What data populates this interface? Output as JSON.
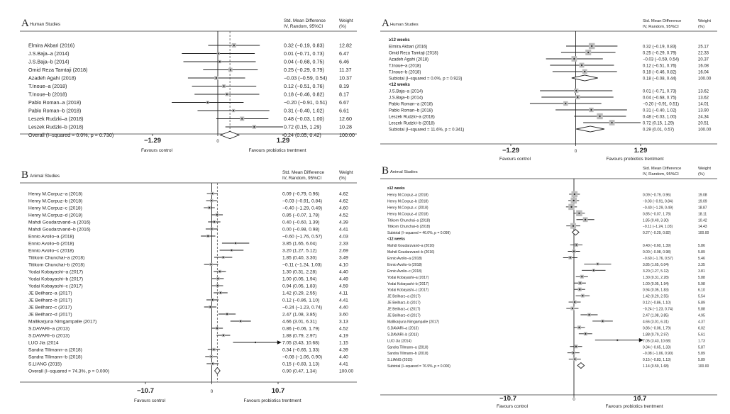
{
  "chart_data": [
    {
      "type": "forest",
      "panel": "A",
      "title": "Human Studies",
      "col_header_es": [
        "Std. Mean Difference",
        "IV, Random,  95%CI"
      ],
      "col_header_w": [
        "Weight",
        "(%)"
      ],
      "xlim": [
        -1.29,
        1.29
      ],
      "ticks": [
        "-1.29",
        "0",
        "1.29"
      ],
      "left_label": "Favours control",
      "right_label": "Favours probiotics trentment",
      "overall_es": 0.24,
      "rows": [
        {
          "kind": "study",
          "name": "Elmira Akbari (2016)",
          "es": 0.32,
          "lo": -0.19,
          "hi": 0.83,
          "text": "0.32 (−0.19, 0.83)",
          "w": "12.82"
        },
        {
          "kind": "study",
          "name": "J.S.Baja–a (2014)",
          "es": 0.01,
          "lo": -0.71,
          "hi": 0.73,
          "text": "0.01 (−0.71, 0.73)",
          "w": "6.47"
        },
        {
          "kind": "study",
          "name": "J.S.Baja–b (2014)",
          "es": 0.04,
          "lo": -0.68,
          "hi": 0.75,
          "text": "0.04 (−0.68, 0.75)",
          "w": "6.46"
        },
        {
          "kind": "study",
          "name": "Omid Reza Tamtaji (2018)",
          "es": 0.25,
          "lo": -0.29,
          "hi": 0.79,
          "text": "0.25 (−0.29, 0.79)",
          "w": "11.37"
        },
        {
          "kind": "study",
          "name": "Azadeh Agahi (2018)",
          "es": -0.03,
          "lo": -0.59,
          "hi": 0.54,
          "text": "−0.03 (−0.59, 0.54)",
          "w": "10.37"
        },
        {
          "kind": "study",
          "name": "T.Inoue–a (2018)",
          "es": 0.12,
          "lo": -0.51,
          "hi": 0.76,
          "text": "0.12 (−0.51, 0.76)",
          "w": "8.19"
        },
        {
          "kind": "study",
          "name": "T.Inoue–b (2018)",
          "es": 0.18,
          "lo": -0.46,
          "hi": 0.82,
          "text": "0.18 (−0.46, 0.82)",
          "w": "8.17"
        },
        {
          "kind": "study",
          "name": "Pablo Roman–a (2018)",
          "es": -0.2,
          "lo": -0.91,
          "hi": 0.51,
          "text": "−0.20 (−0.91, 0.51)",
          "w": "6.67"
        },
        {
          "kind": "study",
          "name": "Pablo Roman–b (2018)",
          "es": 0.31,
          "lo": -0.4,
          "hi": 1.02,
          "text": "0.31 (−0.40, 1.02)",
          "w": "6.61"
        },
        {
          "kind": "study",
          "name": "Leszek Rudzki–a (2018)",
          "es": 0.48,
          "lo": -0.03,
          "hi": 1.0,
          "text": "0.48 (−0.03, 1.00)",
          "w": "12.60"
        },
        {
          "kind": "study",
          "name": "Leszek Rudzki–b (2018)",
          "es": 0.72,
          "lo": 0.15,
          "hi": 1.29,
          "text": "0.72 (0.15, 1.29)",
          "w": "10.28"
        },
        {
          "kind": "sum",
          "name": "Overall  (I–squared = 0.0%, p = 0.730)",
          "es": 0.24,
          "lo": 0.05,
          "hi": 0.42,
          "text": "0.24 (0.05, 0.42)",
          "w": "100.00"
        }
      ]
    },
    {
      "type": "forest",
      "panel": "A",
      "title": "Human Studies",
      "col_header_es": [
        "Std. Mean Difference",
        "IV, Random,  95%CI"
      ],
      "col_header_w": [
        "Weight",
        "(%)"
      ],
      "xlim": [
        -1.29,
        1.29
      ],
      "ticks": [
        "-1.29",
        "0",
        "1.29"
      ],
      "left_label": "Favours control",
      "right_label": "Favours probiotics trentment",
      "rows": [
        {
          "kind": "group",
          "name": "≥12 weeks"
        },
        {
          "kind": "study",
          "name": "Elmira Akbari (2016)",
          "es": 0.32,
          "lo": -0.19,
          "hi": 0.83,
          "text": "0.32 (−0.19, 0.83)",
          "w": "25.17"
        },
        {
          "kind": "study",
          "name": "Omid Reza Tamtaji (2018)",
          "es": 0.25,
          "lo": -0.29,
          "hi": 0.79,
          "text": "0.25 (−0.29, 0.79)",
          "w": "22.33"
        },
        {
          "kind": "study",
          "name": "Azadeh Agahi (2018)",
          "es": -0.03,
          "lo": -0.59,
          "hi": 0.54,
          "text": "−0.03 (−0.59, 0.54)",
          "w": "20.37"
        },
        {
          "kind": "study",
          "name": "T.Inoue–a (2018)",
          "es": 0.12,
          "lo": -0.51,
          "hi": 0.76,
          "text": "0.12 (−0.51, 0.76)",
          "w": "16.08"
        },
        {
          "kind": "study",
          "name": "T.Inoue–b (2018)",
          "es": 0.18,
          "lo": -0.46,
          "hi": 0.82,
          "text": "0.18 (−0.46, 0.82)",
          "w": "16.04"
        },
        {
          "kind": "sum",
          "name": "Subtotal  (I–squared = 0.0%, p = 0.923)",
          "es": 0.18,
          "lo": -0.08,
          "hi": 0.44,
          "text": "0.18 (−0.08, 0.44)",
          "w": "100.00"
        },
        {
          "kind": "group",
          "name": "<12 weeks"
        },
        {
          "kind": "study",
          "name": "J.S.Baja–a (2014)",
          "es": 0.01,
          "lo": -0.71,
          "hi": 0.73,
          "text": "0.01 (−0.71, 0.73)",
          "w": "13.62"
        },
        {
          "kind": "study",
          "name": "J.S.Baja–b (2014)",
          "es": 0.04,
          "lo": -0.68,
          "hi": 0.75,
          "text": "0.04 (−0.68, 0.75)",
          "w": "13.62"
        },
        {
          "kind": "study",
          "name": "Pablo Roman–a (2018)",
          "es": -0.2,
          "lo": -0.91,
          "hi": 0.51,
          "text": "−0.20 (−0.91, 0.51)",
          "w": "14.01"
        },
        {
          "kind": "study",
          "name": "Pablo Roman–b (2018)",
          "es": 0.31,
          "lo": -0.4,
          "hi": 1.02,
          "text": "0.31 (−0.40, 1.02)",
          "w": "13.90"
        },
        {
          "kind": "study",
          "name": "Leszek Rudzki–a (2018)",
          "es": 0.48,
          "lo": -0.03,
          "hi": 1.0,
          "text": "0.48 (−0.03, 1.00)",
          "w": "24.34"
        },
        {
          "kind": "study",
          "name": "Leszek Rudzki–b (2018)",
          "es": 0.72,
          "lo": 0.15,
          "hi": 1.29,
          "text": "0.72 (0.15, 1.29)",
          "w": "20.51"
        },
        {
          "kind": "sum",
          "name": "Subtotal  (I–squared = 11.6%, p = 0.341)",
          "es": 0.29,
          "lo": 0.01,
          "hi": 0.57,
          "text": "0.29 (0.01, 0.57)",
          "w": "100.00"
        }
      ]
    },
    {
      "type": "forest",
      "panel": "B",
      "title": "Animal Studies",
      "col_header_es": [
        "Std. Mean Difference",
        "IV, Random,  95%CI"
      ],
      "col_header_w": [
        "Weight",
        "(%)"
      ],
      "xlim": [
        -10.7,
        10.7
      ],
      "ticks": [
        "-10.7",
        "0",
        "10.7"
      ],
      "left_label": "Favours control",
      "right_label": "Favours probiotics trentment",
      "overall_es": 0.9,
      "rows": [
        {
          "kind": "study",
          "name": "Henry M.Corpuz–a (2018)",
          "es": 0.09,
          "lo": -0.79,
          "hi": 0.96,
          "text": "0.09 (−0.79, 0.96)",
          "w": "4.62"
        },
        {
          "kind": "study",
          "name": "Henry M.Corpuz–b (2018)",
          "es": -0.03,
          "lo": -0.91,
          "hi": 0.84,
          "text": "−0.03 (−0.91, 0.84)",
          "w": "4.62"
        },
        {
          "kind": "study",
          "name": "Henry M.Corpuz–c (2018)",
          "es": -0.4,
          "lo": -1.29,
          "hi": 0.49,
          "text": "−0.40 (−1.29, 0.49)",
          "w": "4.60"
        },
        {
          "kind": "study",
          "name": "Henry M.Corpuz–d (2018)",
          "es": 0.85,
          "lo": -0.07,
          "hi": 1.78,
          "text": "0.85 (−0.07, 1.78)",
          "w": "4.52"
        },
        {
          "kind": "study",
          "name": "Mahdi Goudarzvand–a (2016)",
          "es": 0.4,
          "lo": -0.6,
          "hi": 1.39,
          "text": "0.40 (−0.60, 1.39)",
          "w": "4.39"
        },
        {
          "kind": "study",
          "name": "Mahdi Goudarzvand–b (2016)",
          "es": 0.0,
          "lo": -0.98,
          "hi": 0.98,
          "text": "0.00 (−0.98, 0.98)",
          "w": "4.41"
        },
        {
          "kind": "study",
          "name": "Ennio Avolio–a (2018)",
          "es": -0.6,
          "lo": -1.76,
          "hi": 0.57,
          "text": "−0.60 (−1.76, 0.57)",
          "w": "4.03"
        },
        {
          "kind": "study",
          "name": "Ennio Avolio–b (2018)",
          "es": 3.85,
          "lo": 1.65,
          "hi": 6.04,
          "text": "3.85 (1.65, 6.04)",
          "w": "2.33"
        },
        {
          "kind": "study",
          "name": "Ennio Avolio–c (2018)",
          "es": 3.2,
          "lo": 1.27,
          "hi": 5.12,
          "text": "3.20 (1.27, 5.12)",
          "w": "2.69"
        },
        {
          "kind": "study",
          "name": "Titikorn Chunchai–a (2018)",
          "es": 1.85,
          "lo": 0.4,
          "hi": 3.3,
          "text": "1.85 (0.40, 3.30)",
          "w": "3.49"
        },
        {
          "kind": "study",
          "name": "Titikorn Chunchai–b (2018)",
          "es": -0.11,
          "lo": -1.24,
          "hi": 1.03,
          "text": "−0.11 (−1.24, 1.03)",
          "w": "4.10"
        },
        {
          "kind": "study",
          "name": "Yodai Kobayashi–a (2017)",
          "es": 1.3,
          "lo": 0.31,
          "hi": 2.28,
          "text": "1.30 (0.31, 2.28)",
          "w": "4.40"
        },
        {
          "kind": "study",
          "name": "Yodai Kobayashi–b (2017)",
          "es": 1.0,
          "lo": 0.05,
          "hi": 1.94,
          "text": "1.00 (0.05, 1.94)",
          "w": "4.49"
        },
        {
          "kind": "study",
          "name": "Yodai Kobayashi–c (2017)",
          "es": 0.94,
          "lo": 0.05,
          "hi": 1.83,
          "text": "0.94 (0.05, 1.83)",
          "w": "4.59"
        },
        {
          "kind": "study",
          "name": "JE Beilharz–a (2017)",
          "es": 1.42,
          "lo": 0.29,
          "hi": 2.55,
          "text": "1.42 (0.29, 2.55)",
          "w": "4.11"
        },
        {
          "kind": "study",
          "name": "JE Beilharz–b (2017)",
          "es": 0.12,
          "lo": -0.86,
          "hi": 1.1,
          "text": "0.12 (−0.86, 1.10)",
          "w": "4.41"
        },
        {
          "kind": "study",
          "name": "JE Beilharz–c (2017)",
          "es": -0.24,
          "lo": -1.23,
          "hi": 0.74,
          "text": "−0.24 (−1.23, 0.74)",
          "w": "4.40"
        },
        {
          "kind": "study",
          "name": "JE Beilharz–d (2017)",
          "es": 2.47,
          "lo": 1.08,
          "hi": 3.85,
          "text": "2.47 (1.08, 3.85)",
          "w": "3.60"
        },
        {
          "kind": "study",
          "name": "Mallikarjuna Nimgampalle (2017)",
          "es": 4.66,
          "lo": 3.01,
          "hi": 6.31,
          "text": "4.66 (3.01, 6.31)",
          "w": "3.13"
        },
        {
          "kind": "study",
          "name": "S.DAVARI–a (2013)",
          "es": 0.86,
          "lo": -0.06,
          "hi": 1.79,
          "text": "0.86 (−0.06, 1.79)",
          "w": "4.52"
        },
        {
          "kind": "study",
          "name": "S.DAVARI–b (2013)",
          "es": 1.88,
          "lo": 0.79,
          "hi": 2.97,
          "text": "1.88 (0.79, 2.97)",
          "w": "4.19"
        },
        {
          "kind": "study",
          "name": "LUO Jia (2014",
          "es": 7.05,
          "lo": 3.43,
          "hi": 10.68,
          "text": "7.05 (3.43, 10.68)",
          "w": "1.15",
          "arrow": true
        },
        {
          "kind": "study",
          "name": "Sandra Tillmann–a (2018)",
          "es": 0.34,
          "lo": -0.65,
          "hi": 1.33,
          "text": "0.34 (−0.65, 1.33)",
          "w": "4.39"
        },
        {
          "kind": "study",
          "name": "Sandra Tillmann–b (2018)",
          "es": -0.08,
          "lo": -1.06,
          "hi": 0.9,
          "text": "−0.08 (−1.06, 0.90)",
          "w": "4.40"
        },
        {
          "kind": "study",
          "name": "S.LIANG (2015)",
          "es": 0.15,
          "lo": -0.83,
          "hi": 1.13,
          "text": "0.15 (−0.83, 1.13)",
          "w": "4.41"
        },
        {
          "kind": "sum",
          "name": "Overall  (I–squared = 74.3%, p = 0.000)",
          "es": 0.9,
          "lo": 0.47,
          "hi": 1.34,
          "text": "0.90 (0.47, 1.34)",
          "w": "100.00"
        }
      ]
    },
    {
      "type": "forest",
      "panel": "B",
      "title": "Animal Studies",
      "col_header_es": [
        "Std. Mean Difference",
        "IV, Random,  95%CI"
      ],
      "col_header_w": [
        "Weight",
        "(%)"
      ],
      "xlim": [
        -10.7,
        10.7
      ],
      "ticks": [
        "-10.7",
        "0",
        "10.7"
      ],
      "left_label": "Favours control",
      "right_label": "Favours probiotics trentment",
      "rows": [
        {
          "kind": "group",
          "name": "≥12 weeks"
        },
        {
          "kind": "study",
          "name": "Henry M.Corpuz–a (2018)",
          "es": 0.09,
          "lo": -0.79,
          "hi": 0.96,
          "text": "0.09 (−0.79, 0.96)",
          "w": "19.08"
        },
        {
          "kind": "study",
          "name": "Henry M.Corpuz–b (2018)",
          "es": -0.03,
          "lo": -0.91,
          "hi": 0.84,
          "text": "−0.03 (−0.91, 0.84)",
          "w": "19.09"
        },
        {
          "kind": "study",
          "name": "Henry M.Corpuz–c (2018)",
          "es": -0.4,
          "lo": -1.29,
          "hi": 0.49,
          "text": "−0.40 (−1.29, 0.49)",
          "w": "18.87"
        },
        {
          "kind": "study",
          "name": "Henry M.Corpuz–d (2018)",
          "es": 0.85,
          "lo": -0.07,
          "hi": 1.78,
          "text": "0.85 (−0.07, 1.78)",
          "w": "18.11"
        },
        {
          "kind": "study",
          "name": "Titikorn Chunchai–a (2018)",
          "es": 1.85,
          "lo": 0.4,
          "hi": 3.3,
          "text": "1.85 (0.40, 3.30)",
          "w": "10.42"
        },
        {
          "kind": "study",
          "name": "Titikorn Chunchai–b (2018)",
          "es": -0.11,
          "lo": -1.24,
          "hi": 1.03,
          "text": "−0.11 (−1.24, 1.03)",
          "w": "14.43"
        },
        {
          "kind": "sum",
          "name": "Subtotal  (I–squared = 46.0%, p = 0.099)",
          "es": 0.27,
          "lo": -0.29,
          "hi": 0.82,
          "text": "0.27 (−0.29, 0.82)",
          "w": "100.00"
        },
        {
          "kind": "group",
          "name": "<12 weeks"
        },
        {
          "kind": "study",
          "name": "Mahdi Goudarzvand–a (2016)",
          "es": 0.4,
          "lo": -0.6,
          "hi": 1.39,
          "text": "0.40 (−0.60, 1.39)",
          "w": "5.86"
        },
        {
          "kind": "study",
          "name": "Mahdi Goudarzvand–b (2016)",
          "es": 0.0,
          "lo": -0.98,
          "hi": 0.98,
          "text": "0.00 (−0.98, 0.98)",
          "w": "5.89"
        },
        {
          "kind": "study",
          "name": "Ennio Avolio–a (2018)",
          "es": -0.6,
          "lo": -1.76,
          "hi": 0.57,
          "text": "−0.60 (−1.76, 0.57)",
          "w": "5.46"
        },
        {
          "kind": "study",
          "name": "Ennio Avolio–b (2018)",
          "es": 3.85,
          "lo": 1.65,
          "hi": 6.04,
          "text": "3.85 (1.65, 6.04)",
          "w": "3.35"
        },
        {
          "kind": "study",
          "name": "Ennio Avolio–c (2018)",
          "es": 3.2,
          "lo": 1.27,
          "hi": 5.12,
          "text": "3.20 (1.27, 5.12)",
          "w": "3.81"
        },
        {
          "kind": "study",
          "name": "Yodai Kobayashi–a (2017)",
          "es": 1.3,
          "lo": 0.31,
          "hi": 2.28,
          "text": "1.30 (0.31, 2.28)",
          "w": "5.88"
        },
        {
          "kind": "study",
          "name": "Yodai Kobayashi–b (2017)",
          "es": 1.0,
          "lo": 0.05,
          "hi": 1.94,
          "text": "1.00 (0.05, 1.94)",
          "w": "5.98"
        },
        {
          "kind": "study",
          "name": "Yodai Kobayashi–c (2017)",
          "es": 0.94,
          "lo": 0.05,
          "hi": 1.83,
          "text": "0.94 (0.05, 1.83)",
          "w": "6.10"
        },
        {
          "kind": "study",
          "name": "JE Beilharz–a (2017)",
          "es": 1.42,
          "lo": 0.29,
          "hi": 2.55,
          "text": "1.42 (0.29, 2.55)",
          "w": "5.54"
        },
        {
          "kind": "study",
          "name": "JE Beilharz–b (2017)",
          "es": 0.12,
          "lo": -0.86,
          "hi": 1.1,
          "text": "0.12 (−0.86, 1.10)",
          "w": "5.89"
        },
        {
          "kind": "study",
          "name": "JE Beilharz–c (2017)",
          "es": -0.24,
          "lo": -1.23,
          "hi": 0.74,
          "text": "−0.24 (−1.23, 0.74)",
          "w": "5.88"
        },
        {
          "kind": "study",
          "name": "JE Beilharz–d (2017)",
          "es": 2.47,
          "lo": 1.08,
          "hi": 3.85,
          "text": "2.47 (1.08, 3.85)",
          "w": "4.95"
        },
        {
          "kind": "study",
          "name": "Mallikarjuna Nimgampalle (2017)",
          "es": 4.66,
          "lo": 3.01,
          "hi": 6.31,
          "text": "4.66 (3.01, 6.31)",
          "w": "4.37"
        },
        {
          "kind": "study",
          "name": "S.DAVARI–a (2013)",
          "es": 0.86,
          "lo": -0.06,
          "hi": 1.79,
          "text": "0.86 (−0.06, 1.79)",
          "w": "6.02"
        },
        {
          "kind": "study",
          "name": "S.DAVARI–b (2013)",
          "es": 1.88,
          "lo": 0.79,
          "hi": 2.97,
          "text": "1.88 (0.79, 2.97)",
          "w": "5.61"
        },
        {
          "kind": "study",
          "name": "LUO Jia (2014)",
          "es": 7.05,
          "lo": 3.43,
          "hi": 10.68,
          "text": "7.05 (3.43, 10.68)",
          "w": "1.73",
          "arrow": true
        },
        {
          "kind": "study",
          "name": "Sandra Tillmann–a (2018)",
          "es": 0.34,
          "lo": -0.65,
          "hi": 1.33,
          "text": "0.34 (−0.65, 1.33)",
          "w": "5.87"
        },
        {
          "kind": "study",
          "name": "Sandra Tillmann–b (2018)",
          "es": -0.08,
          "lo": -1.06,
          "hi": 0.9,
          "text": "−0.08 (−1.06, 0.90)",
          "w": "5.89"
        },
        {
          "kind": "study",
          "name": "S.LIANG (2015)",
          "es": 0.15,
          "lo": -0.83,
          "hi": 1.13,
          "text": "0.15 (−0.83, 1.13)",
          "w": "5.89"
        },
        {
          "kind": "sum",
          "name": "Subtotal  (I–squared = 76.9%, p = 0.000)",
          "es": 1.14,
          "lo": 0.59,
          "hi": 1.68,
          "text": "1.14 (0.59, 1.68)",
          "w": "100.00"
        }
      ]
    }
  ]
}
